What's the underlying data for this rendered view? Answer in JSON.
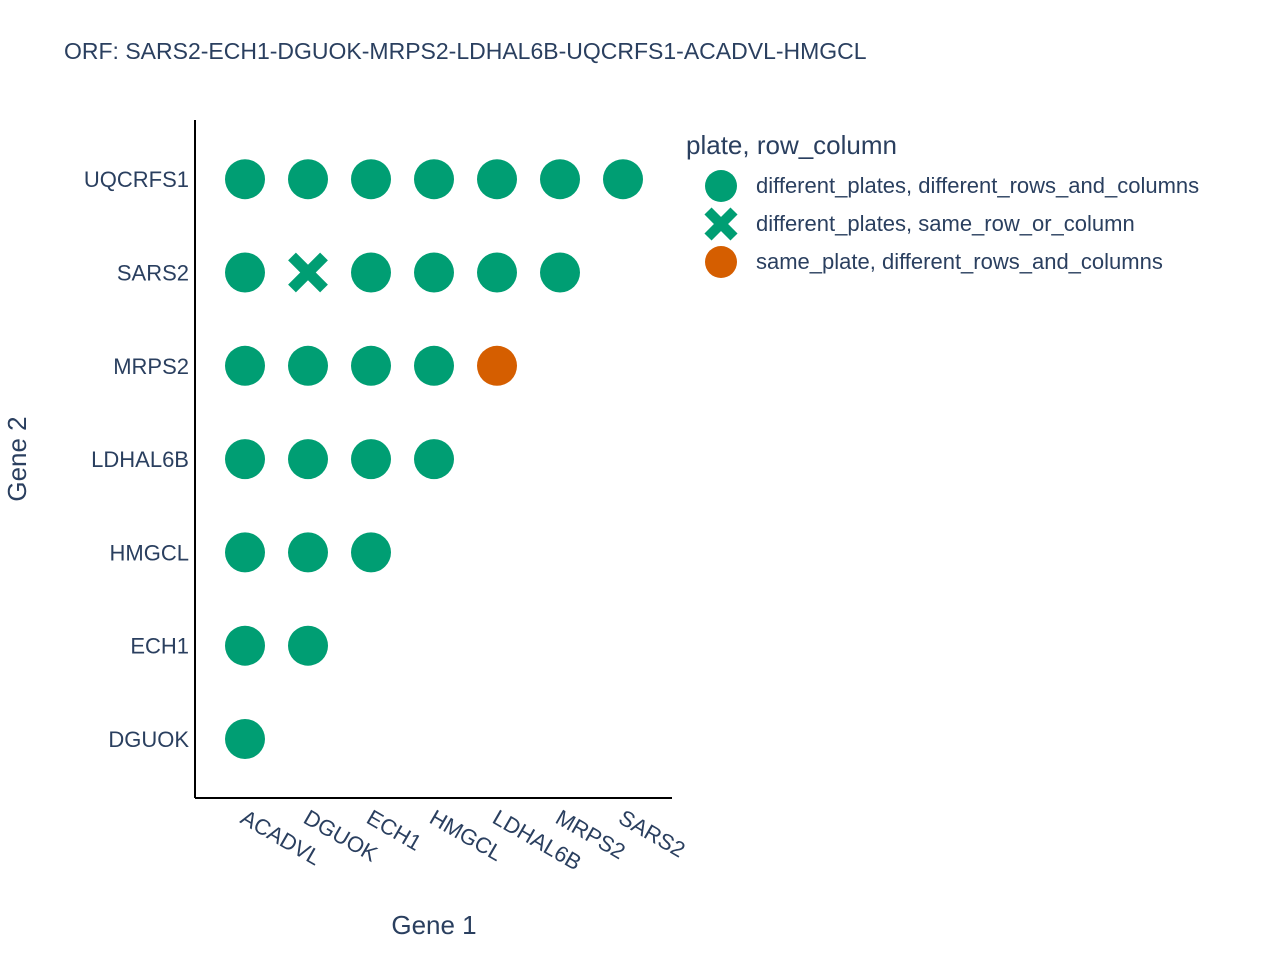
{
  "title": "ORF: SARS2-ECH1-DGUOK-MRPS2-LDHAL6B-UQCRFS1-ACADVL-HMGCL",
  "colors": {
    "green": "#009e73",
    "orange": "#d55e00",
    "text": "#2a3f5f",
    "axis": "#000000"
  },
  "legend": {
    "title": "plate, row_column",
    "items": [
      {
        "label": "different_plates, different_rows_and_columns",
        "symbol": "circle",
        "color": "#009e73"
      },
      {
        "label": "different_plates, same_row_or_column",
        "symbol": "x",
        "color": "#009e73"
      },
      {
        "label": "same_plate, different_rows_and_columns",
        "symbol": "circle",
        "color": "#d55e00"
      }
    ]
  },
  "chart_data": {
    "type": "scatter",
    "title": "ORF: SARS2-ECH1-DGUOK-MRPS2-LDHAL6B-UQCRFS1-ACADVL-HMGCL",
    "xlabel": "Gene 1",
    "ylabel": "Gene 2",
    "x_categories": [
      "ACADVL",
      "DGUOK",
      "ECH1",
      "HMGCL",
      "LDHAL6B",
      "MRPS2",
      "SARS2"
    ],
    "y_categories": [
      "DGUOK",
      "ECH1",
      "HMGCL",
      "LDHAL6B",
      "MRPS2",
      "SARS2",
      "UQCRFS1"
    ],
    "grid": false,
    "legend_position": "top-right",
    "points": [
      {
        "x": "ACADVL",
        "y": "UQCRFS1",
        "group": 0
      },
      {
        "x": "DGUOK",
        "y": "UQCRFS1",
        "group": 0
      },
      {
        "x": "ECH1",
        "y": "UQCRFS1",
        "group": 0
      },
      {
        "x": "HMGCL",
        "y": "UQCRFS1",
        "group": 0
      },
      {
        "x": "LDHAL6B",
        "y": "UQCRFS1",
        "group": 0
      },
      {
        "x": "MRPS2",
        "y": "UQCRFS1",
        "group": 0
      },
      {
        "x": "SARS2",
        "y": "UQCRFS1",
        "group": 0
      },
      {
        "x": "ACADVL",
        "y": "SARS2",
        "group": 0
      },
      {
        "x": "DGUOK",
        "y": "SARS2",
        "group": 1
      },
      {
        "x": "ECH1",
        "y": "SARS2",
        "group": 0
      },
      {
        "x": "HMGCL",
        "y": "SARS2",
        "group": 0
      },
      {
        "x": "LDHAL6B",
        "y": "SARS2",
        "group": 0
      },
      {
        "x": "MRPS2",
        "y": "SARS2",
        "group": 0
      },
      {
        "x": "ACADVL",
        "y": "MRPS2",
        "group": 0
      },
      {
        "x": "DGUOK",
        "y": "MRPS2",
        "group": 0
      },
      {
        "x": "ECH1",
        "y": "MRPS2",
        "group": 0
      },
      {
        "x": "HMGCL",
        "y": "MRPS2",
        "group": 0
      },
      {
        "x": "LDHAL6B",
        "y": "MRPS2",
        "group": 2
      },
      {
        "x": "ACADVL",
        "y": "LDHAL6B",
        "group": 0
      },
      {
        "x": "DGUOK",
        "y": "LDHAL6B",
        "group": 0
      },
      {
        "x": "ECH1",
        "y": "LDHAL6B",
        "group": 0
      },
      {
        "x": "HMGCL",
        "y": "LDHAL6B",
        "group": 0
      },
      {
        "x": "ACADVL",
        "y": "HMGCL",
        "group": 0
      },
      {
        "x": "DGUOK",
        "y": "HMGCL",
        "group": 0
      },
      {
        "x": "ECH1",
        "y": "HMGCL",
        "group": 0
      },
      {
        "x": "ACADVL",
        "y": "ECH1",
        "group": 0
      },
      {
        "x": "DGUOK",
        "y": "ECH1",
        "group": 0
      },
      {
        "x": "ACADVL",
        "y": "DGUOK",
        "group": 0
      }
    ]
  }
}
